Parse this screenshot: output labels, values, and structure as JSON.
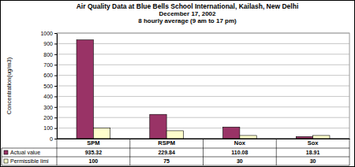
{
  "chart_data": {
    "type": "bar",
    "title": "Air Quality Data at Blue Bells School International, Kailash, New Delhi",
    "subtitle": [
      "December 17, 2002",
      "8 hourly average (9 am to 17 pm)"
    ],
    "y_label": "Concentration(ug/m3)",
    "categories": [
      "SPM",
      "RSPM",
      "Nox",
      "Sox"
    ],
    "series": [
      {
        "name": "Actual value",
        "color": "#993366",
        "values": [
          935.32,
          229.84,
          110.08,
          18.91
        ]
      },
      {
        "name": "Permissible limi",
        "color": "#ffffcc",
        "values": [
          100,
          75,
          30,
          30
        ]
      }
    ],
    "ylim": [
      0,
      1000
    ],
    "yticks": [
      0,
      100,
      200,
      300,
      400,
      500,
      600,
      700,
      800,
      900,
      1000
    ],
    "grid": true,
    "legend": "bottom"
  }
}
